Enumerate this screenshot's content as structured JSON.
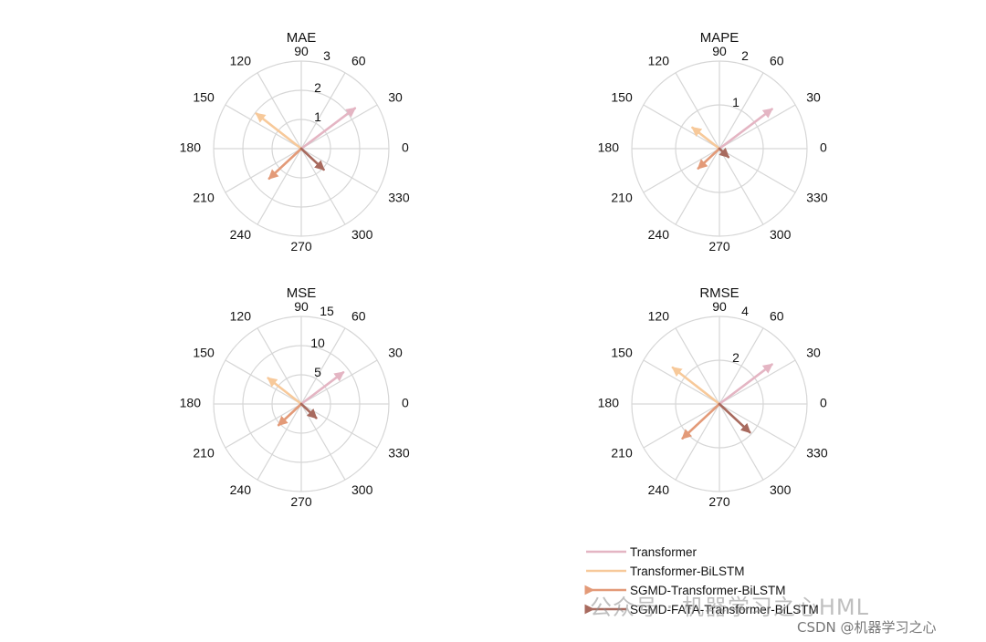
{
  "chart_data": [
    {
      "type": "polar-compass",
      "title": "MAE",
      "r_ticks": [
        1,
        2,
        3
      ],
      "r_max": 3,
      "angle_ticks": [
        0,
        30,
        60,
        90,
        120,
        150,
        180,
        210,
        240,
        270,
        300,
        330
      ],
      "series": [
        {
          "name": "Transformer",
          "angle": 37,
          "r": 2.3
        },
        {
          "name": "Transformer-BiLSTM",
          "angle": 142,
          "r": 1.95
        },
        {
          "name": "SGMD-Transformer-BiLSTM",
          "angle": 223,
          "r": 1.5
        },
        {
          "name": "SGMD-FATA-Transformer-BiLSTM",
          "angle": 317,
          "r": 1.05
        }
      ]
    },
    {
      "type": "polar-compass",
      "title": "MAPE",
      "r_ticks": [
        1,
        2
      ],
      "r_max": 2,
      "angle_ticks": [
        0,
        30,
        60,
        90,
        120,
        150,
        180,
        210,
        240,
        270,
        300,
        330
      ],
      "series": [
        {
          "name": "Transformer",
          "angle": 37,
          "r": 1.5
        },
        {
          "name": "Transformer-BiLSTM",
          "angle": 142,
          "r": 0.78
        },
        {
          "name": "SGMD-Transformer-BiLSTM",
          "angle": 223,
          "r": 0.66
        },
        {
          "name": "SGMD-FATA-Transformer-BiLSTM",
          "angle": 317,
          "r": 0.28
        }
      ]
    },
    {
      "type": "polar-compass",
      "title": "MSE",
      "r_ticks": [
        5,
        10,
        15
      ],
      "r_max": 15,
      "angle_ticks": [
        0,
        30,
        60,
        90,
        120,
        150,
        180,
        210,
        240,
        270,
        300,
        330
      ],
      "series": [
        {
          "name": "Transformer",
          "angle": 37,
          "r": 9.0
        },
        {
          "name": "Transformer-BiLSTM",
          "angle": 142,
          "r": 7.2
        },
        {
          "name": "SGMD-Transformer-BiLSTM",
          "angle": 223,
          "r": 5.3
        },
        {
          "name": "SGMD-FATA-Transformer-BiLSTM",
          "angle": 317,
          "r": 3.5
        }
      ]
    },
    {
      "type": "polar-compass",
      "title": "RMSE",
      "r_ticks": [
        2,
        4
      ],
      "r_max": 4,
      "angle_ticks": [
        0,
        30,
        60,
        90,
        120,
        150,
        180,
        210,
        240,
        270,
        300,
        330
      ],
      "series": [
        {
          "name": "Transformer",
          "angle": 37,
          "r": 3.0
        },
        {
          "name": "Transformer-BiLSTM",
          "angle": 142,
          "r": 2.7
        },
        {
          "name": "SGMD-Transformer-BiLSTM",
          "angle": 223,
          "r": 2.3
        },
        {
          "name": "SGMD-FATA-Transformer-BiLSTM",
          "angle": 317,
          "r": 1.9
        }
      ]
    }
  ],
  "legend": {
    "placement": "bottom-right",
    "entries": [
      {
        "label": "Transformer",
        "color": "#e4b5c3"
      },
      {
        "label": "Transformer-BiLSTM",
        "color": "#f7c99a"
      },
      {
        "label": "SGMD-Transformer-BiLSTM",
        "color": "#e39a78"
      },
      {
        "label": "SGMD-FATA-Transformer-BiLSTM",
        "color": "#a86a5e"
      }
    ]
  },
  "watermark": {
    "main": "公众号 · 机器学习之心HML",
    "csdn": "CSDN @机器学习之心"
  },
  "colors": {
    "grid": "#d6d6d6",
    "text": "#111111"
  }
}
